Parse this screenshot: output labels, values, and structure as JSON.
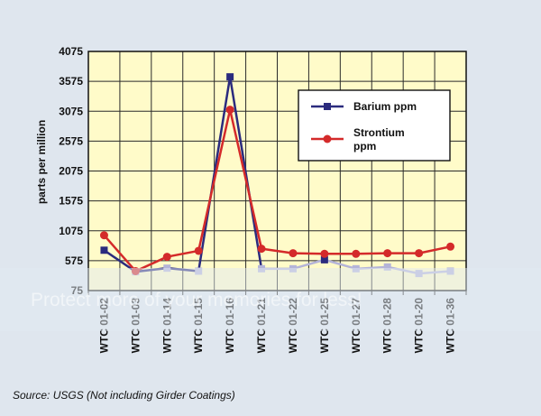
{
  "chart_data": {
    "type": "line",
    "title": "",
    "xlabel": "",
    "ylabel": "parts per million",
    "categories": [
      "WTC 01-02",
      "WTC 01-03",
      "WTC 01-14",
      "WTC 01-15",
      "WTC 01-16",
      "WTC 01-21",
      "WTC 01-22",
      "WTC 01-25",
      "WTC 01-27",
      "WTC 01-28",
      "WTC 01-20",
      "WTC 01-36"
    ],
    "yticks": [
      "4075",
      "3575",
      "3075",
      "2575",
      "2075",
      "1575",
      "1075",
      "575",
      "75"
    ],
    "ylim": [
      75,
      4075
    ],
    "grid": true,
    "legend_position": "top-right",
    "series": [
      {
        "name": "Barium ppm",
        "color": "#2b2b7e",
        "marker": "square",
        "values": [
          750,
          390,
          450,
          400,
          3650,
          440,
          440,
          590,
          440,
          470,
          360,
          400
        ]
      },
      {
        "name": "Strontium ppm",
        "color": "#d42a2a",
        "marker": "circle",
        "values": [
          1000,
          400,
          640,
          740,
          3100,
          775,
          700,
          690,
          690,
          700,
          700,
          810
        ]
      }
    ],
    "faded_values_color": "#b4b4d8",
    "faded_after_series_index": 0
  },
  "legend": {
    "barium_label": "Barium ppm",
    "strontium_label_line1": "Strontium",
    "strontium_label_line2": "ppm"
  },
  "footer": {
    "source": "Source:  USGS   (Not including Girder Coatings)"
  },
  "overlay": {
    "watermark": "Protect more of your memories for less!",
    "band_color": "#e2e9f1"
  },
  "colors": {
    "plot_background": "#fffbc9",
    "grid": "#2a2a2a"
  }
}
